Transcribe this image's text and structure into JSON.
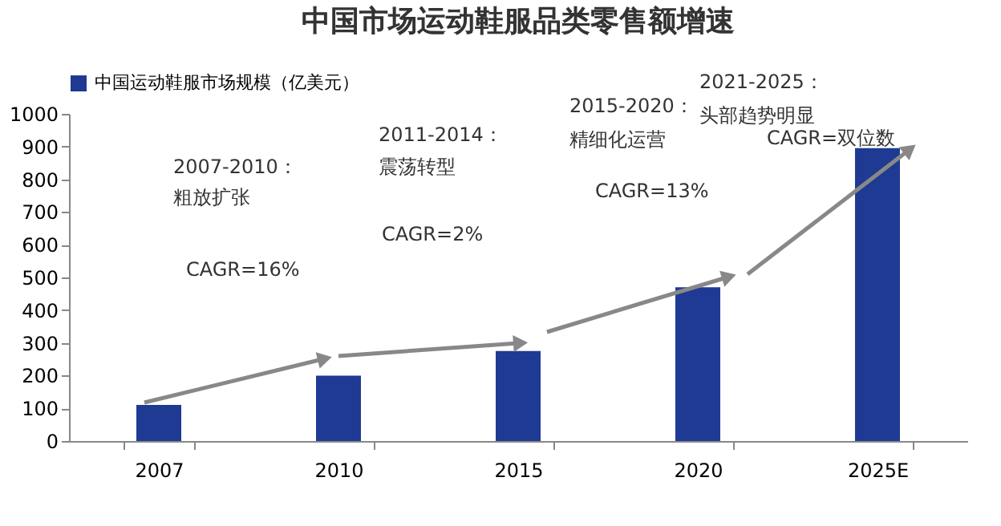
{
  "chart_data": {
    "type": "bar",
    "title": "中国市场运动鞋服品类零售额增速",
    "categories": [
      "2007",
      "2010",
      "2015",
      "2020",
      "2025E"
    ],
    "series": [
      {
        "name": "中国运动鞋服市场规模（亿美元）",
        "color": "#1f3a93",
        "values": [
          110,
          200,
          275,
          470,
          895
        ]
      }
    ],
    "ylim": [
      0,
      1000
    ],
    "yticks": [
      0,
      100,
      200,
      300,
      400,
      500,
      600,
      700,
      800,
      900,
      1000
    ],
    "grid": false,
    "legend": "top",
    "annotations": [
      "2007-2010：",
      "粗放扩张",
      "CAGR=16%",
      "2011-2014：",
      "震荡转型",
      "CAGR=2%",
      "2015-2020：",
      "精细化运营",
      "CAGR=13%",
      "2021-2025：",
      "头部趋势明显",
      "CAGR=双位数"
    ]
  }
}
